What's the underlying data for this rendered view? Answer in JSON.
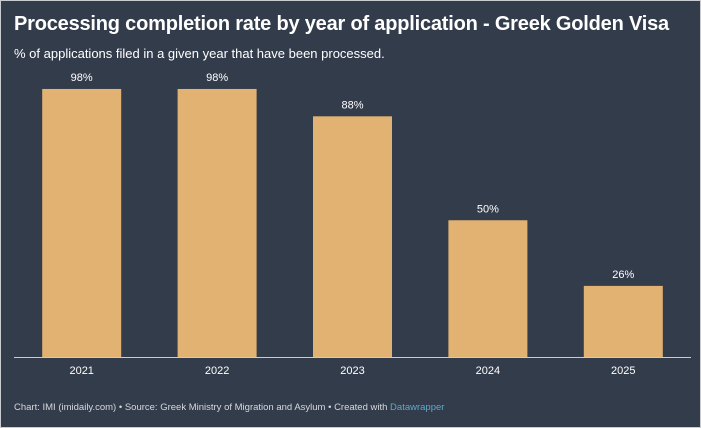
{
  "title": "Processing completion rate by year of application - Greek Golden Visa",
  "subtitle": "% of applications filed in a given year that have been processed.",
  "footer": {
    "text": "Chart: IMI (imidaily.com) • Source: Greek Ministry of Migration and Asylum • Created with ",
    "link": "Datawrapper"
  },
  "colors": {
    "background": "#333c4b",
    "bar": "#e2b272",
    "text": "#ffffff",
    "link": "#5ea9c9"
  },
  "chart_data": {
    "type": "bar",
    "categories": [
      "2021",
      "2022",
      "2023",
      "2024",
      "2025"
    ],
    "values": [
      98,
      98,
      88,
      50,
      26
    ],
    "data_labels": [
      "98%",
      "98%",
      "88%",
      "50%",
      "26%"
    ],
    "ylim": [
      0,
      100
    ],
    "grid": false
  }
}
